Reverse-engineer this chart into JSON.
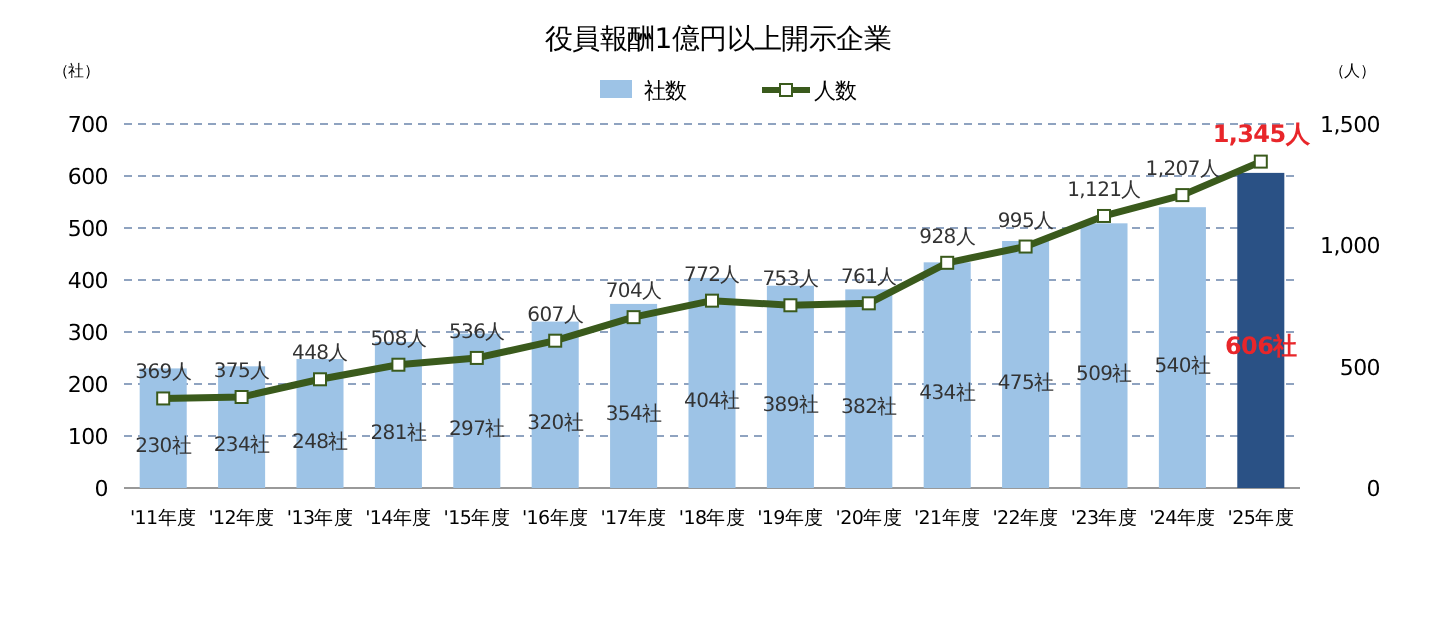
{
  "chart_data": {
    "type": "bar",
    "title": "役員報酬1億円以上開示企業",
    "ylabel": "（社）",
    "y2label": "（人）",
    "categories": [
      "'11年度",
      "'12年度",
      "'13年度",
      "'14年度",
      "'15年度",
      "'16年度",
      "'17年度",
      "'18年度",
      "'19年度",
      "'20年度",
      "'21年度",
      "'22年度",
      "'23年度",
      "'24年度",
      "'25年度"
    ],
    "series": [
      {
        "name": "社数",
        "color": "#9dc3e6",
        "colors": [
          "#9dc3e6",
          "#9dc3e6",
          "#9dc3e6",
          "#9dc3e6",
          "#9dc3e6",
          "#9dc3e6",
          "#9dc3e6",
          "#9dc3e6",
          "#9dc3e6",
          "#9dc3e6",
          "#9dc3e6",
          "#9dc3e6",
          "#9dc3e6",
          "#9dc3e6",
          "#2a5185"
        ],
        "values": [
          230,
          234,
          248,
          281,
          297,
          320,
          354,
          404,
          389,
          382,
          434,
          475,
          509,
          540,
          606
        ],
        "value_labels": [
          "230社",
          "234社",
          "248社",
          "281社",
          "297社",
          "320社",
          "354社",
          "404社",
          "389社",
          "382社",
          "434社",
          "475社",
          "509社",
          "540社",
          "606社"
        ]
      },
      {
        "name": "人数",
        "type": "line",
        "axis": "y2",
        "color": "#3a5a1c",
        "marker": "square",
        "values": [
          369,
          375,
          448,
          508,
          536,
          607,
          704,
          772,
          753,
          761,
          928,
          995,
          1121,
          1207,
          1345
        ],
        "value_labels": [
          "369人",
          "375人",
          "448人",
          "508人",
          "536人",
          "607人",
          "704人",
          "772人",
          "753人",
          "761人",
          "928人",
          "995人",
          "1,121人",
          "1,207人",
          "1,345人"
        ]
      }
    ],
    "ylim": [
      0,
      700
    ],
    "yticks": [
      0,
      100,
      200,
      300,
      400,
      500,
      600,
      700
    ],
    "y2lim": [
      0,
      1500
    ],
    "y2ticks": [
      0,
      {
        "value": 500,
        "label": "500"
      },
      {
        "value": 1000,
        "label": "1,000"
      },
      {
        "value": 1500,
        "label": "1,500"
      }
    ],
    "grid": "y",
    "legend": "top"
  }
}
